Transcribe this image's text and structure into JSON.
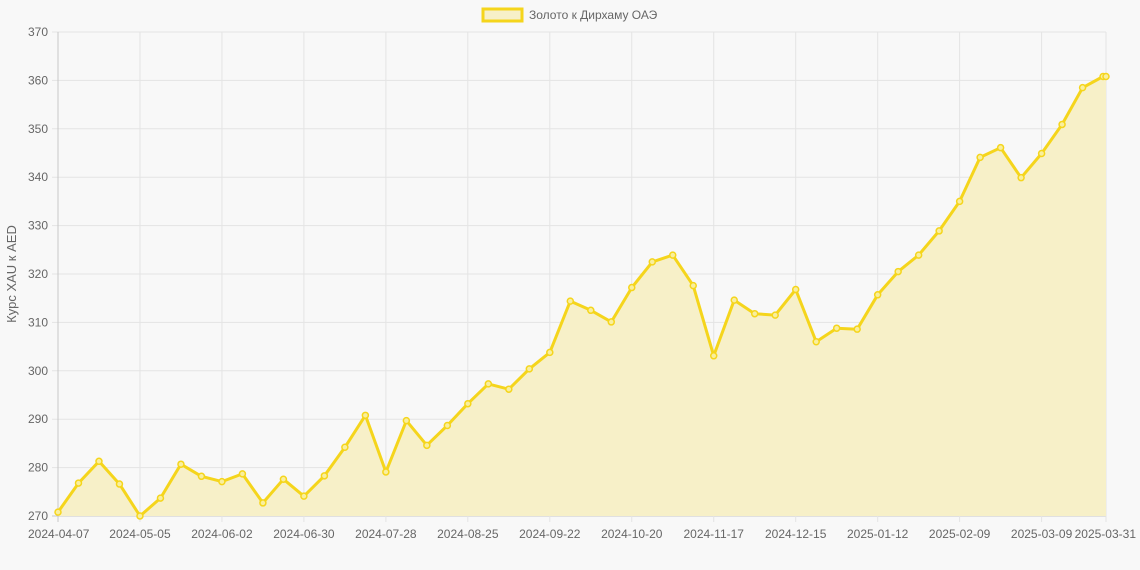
{
  "chart_data": {
    "type": "area",
    "title": "",
    "xlabel": "",
    "ylabel": "Курс XAU к AED",
    "ylim": [
      270,
      370
    ],
    "yticks": [
      270,
      280,
      290,
      300,
      310,
      320,
      330,
      340,
      350,
      360,
      370
    ],
    "grid": true,
    "legend_position": "top-center",
    "x_tick_labels": [
      "2024-04-07",
      "2024-05-05",
      "2024-06-02",
      "2024-06-30",
      "2024-07-28",
      "2024-08-25",
      "2024-09-22",
      "2024-10-20",
      "2024-11-17",
      "2024-12-15",
      "2025-01-12",
      "2025-02-09",
      "2025-03-09",
      "2025-03-31"
    ],
    "series": [
      {
        "name": "Золото к Дирхаму ОАЭ",
        "color": "#f5d51c",
        "fill": "#f7f0c8",
        "x": [
          "2024-04-07",
          "2024-04-14",
          "2024-04-21",
          "2024-04-28",
          "2024-05-05",
          "2024-05-12",
          "2024-05-19",
          "2024-05-26",
          "2024-06-02",
          "2024-06-09",
          "2024-06-16",
          "2024-06-23",
          "2024-06-30",
          "2024-07-07",
          "2024-07-14",
          "2024-07-21",
          "2024-07-28",
          "2024-08-04",
          "2024-08-11",
          "2024-08-18",
          "2024-08-25",
          "2024-09-01",
          "2024-09-08",
          "2024-09-15",
          "2024-09-22",
          "2024-09-29",
          "2024-10-06",
          "2024-10-13",
          "2024-10-20",
          "2024-10-27",
          "2024-11-03",
          "2024-11-10",
          "2024-11-17",
          "2024-11-24",
          "2024-12-01",
          "2024-12-08",
          "2024-12-15",
          "2024-12-22",
          "2024-12-29",
          "2025-01-05",
          "2025-01-12",
          "2025-01-19",
          "2025-01-26",
          "2025-02-02",
          "2025-02-09",
          "2025-02-16",
          "2025-02-23",
          "2025-03-02",
          "2025-03-09",
          "2025-03-16",
          "2025-03-23",
          "2025-03-30",
          "2025-03-31"
        ],
        "values": [
          270.8,
          276.8,
          281.3,
          276.6,
          270.0,
          273.7,
          280.7,
          278.2,
          277.1,
          278.7,
          272.7,
          277.6,
          274.1,
          278.3,
          284.2,
          290.8,
          279.1,
          289.7,
          284.6,
          288.7,
          293.2,
          297.3,
          296.2,
          300.4,
          303.8,
          314.4,
          312.5,
          310.1,
          317.2,
          322.5,
          323.9,
          317.6,
          303.1,
          314.6,
          311.8,
          311.5,
          316.8,
          306.0,
          308.8,
          308.6,
          315.7,
          320.5,
          323.9,
          328.9,
          335.0,
          344.1,
          346.1,
          339.9,
          344.9,
          350.9,
          358.5,
          360.8,
          360.8
        ]
      }
    ]
  }
}
